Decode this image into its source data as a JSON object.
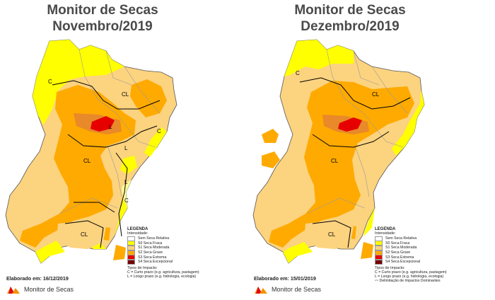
{
  "colors": {
    "none": "#ffffff",
    "s0": "#ffff00",
    "s1": "#fcd37f",
    "s2": "#ffaa00",
    "s3": "#e60000",
    "s4": "#730000",
    "d0": "#f5f566",
    "d1": "#f7d99a",
    "d2": "#e8892a",
    "d3": "#d61f1f",
    "boundary": "#000000",
    "state_line": "#9a9a9a"
  },
  "left_panel": {
    "title_line1": "Monitor de Secas",
    "title_line2": "Novembro/2019",
    "elaborado": "Elaborado em: 16/12/2019",
    "map_labels": [
      "C",
      "CL",
      "CL",
      "L",
      "L",
      "C",
      "L",
      "C",
      "CL"
    ]
  },
  "right_panel": {
    "title_line1": "Monitor de Secas",
    "title_line2": "Dezembro/2019",
    "elaborado": "Elaborado em: 15/01/2019",
    "map_labels": [
      "C",
      "CL",
      "CL",
      "CL"
    ]
  },
  "legend": {
    "title": "LEGENDA",
    "subtitle": "Intensidade:",
    "items": [
      {
        "label": "Sem Seca Relativa",
        "color": "#ffffff"
      },
      {
        "label": "S0 Seca Fraca",
        "color": "#ffff00"
      },
      {
        "label": "S1 Seca Moderada",
        "color": "#fcd37f"
      },
      {
        "label": "S2 Seca Grave",
        "color": "#ffaa00"
      },
      {
        "label": "S3 Seca Extrema",
        "color": "#e60000"
      },
      {
        "label": "S4 Seca Excepcional",
        "color": "#730000"
      }
    ],
    "impact_title": "Tipos de Impacto:",
    "impact_c": "C = Curto prazo (e.g. agricultura, pastagem)",
    "impact_l": "L = Longo prazo (e.g. hidrologia, ecologia)",
    "impact_delim": "Delimitação de Impactos Dominantes"
  },
  "brand": {
    "name": "Monitor de Secas",
    "logo_icon": "monitor-de-secas-logo-icon"
  }
}
